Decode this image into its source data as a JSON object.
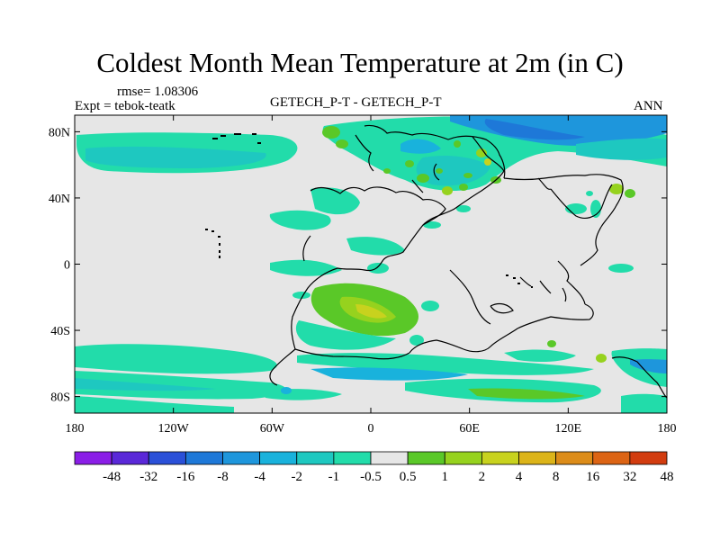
{
  "title": "Coldest Month Mean Temperature at 2m (in C)",
  "rmse": "rmse= 1.08306",
  "expt": "Expt = tebok-teatk",
  "center_title": "GETECH_P-T - GETECH_P-T",
  "season": "ANN",
  "lat_ticks": [
    "80N",
    "40N",
    "0",
    "40S",
    "80S"
  ],
  "lon_ticks": [
    "180",
    "120W",
    "60W",
    "0",
    "60E",
    "120E",
    "180"
  ],
  "legend": {
    "colors": [
      "#8a1ee6",
      "#5a28d8",
      "#2a50d8",
      "#1e78d8",
      "#1e96dc",
      "#19b2dc",
      "#1ec8c0",
      "#22dcaa",
      "#e6e6e6",
      "#5ac828",
      "#96d21e",
      "#c8d21e",
      "#dcb419",
      "#dc8c19",
      "#dc6414",
      "#d23c0f"
    ],
    "labels": [
      "-48",
      "-32",
      "-16",
      "-8",
      "-4",
      "-2",
      "-1",
      "-0.5",
      "0.5",
      "1",
      "2",
      "4",
      "8",
      "16",
      "32",
      "48"
    ]
  }
}
